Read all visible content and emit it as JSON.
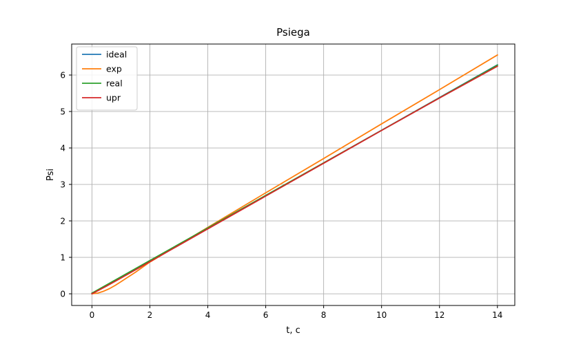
{
  "chart_data": {
    "type": "line",
    "title": "Psiega",
    "xlabel": "t, c",
    "ylabel": "Psi",
    "xlim": [
      -0.7,
      14.6
    ],
    "ylim": [
      -0.32,
      6.85
    ],
    "xticks": [
      0,
      2,
      4,
      6,
      8,
      10,
      12,
      14
    ],
    "yticks": [
      0,
      1,
      2,
      3,
      4,
      5,
      6
    ],
    "grid": true,
    "legend_position": "upper-left",
    "series": [
      {
        "name": "ideal",
        "color": "#1f77b4",
        "x": [
          0,
          14
        ],
        "y": [
          0,
          6.28
        ]
      },
      {
        "name": "exp",
        "color": "#ff7f0e",
        "x": [
          0,
          0.2,
          0.4,
          0.6,
          0.8,
          1.0,
          1.5,
          2,
          4,
          6,
          8,
          10,
          12,
          14
        ],
        "y": [
          0,
          0.02,
          0.07,
          0.14,
          0.23,
          0.33,
          0.59,
          0.87,
          1.82,
          2.77,
          3.71,
          4.66,
          5.6,
          6.55
        ]
      },
      {
        "name": "real",
        "color": "#2ca02c",
        "x": [
          0,
          14
        ],
        "y": [
          0.02,
          6.27
        ]
      },
      {
        "name": "upr",
        "color": "#d62728",
        "x": [
          0,
          0.5,
          1,
          2,
          4,
          6,
          8,
          10,
          12,
          14
        ],
        "y": [
          0,
          0.21,
          0.43,
          0.88,
          1.78,
          2.68,
          3.58,
          4.48,
          5.37,
          6.24
        ]
      }
    ]
  }
}
